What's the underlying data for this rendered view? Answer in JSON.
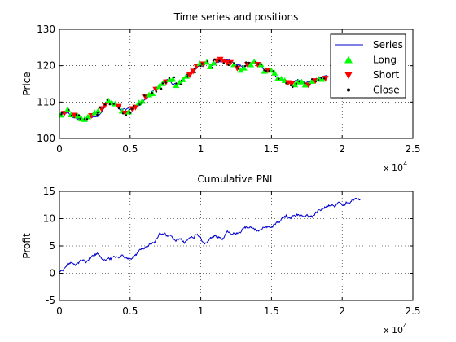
{
  "chart_data": [
    {
      "type": "scatter",
      "title": "Time series and positions",
      "xlabel": "",
      "ylabel": "Price",
      "xlim": [
        0,
        25000
      ],
      "ylim": [
        100,
        130
      ],
      "x_ticks": [
        0,
        5000,
        10000,
        15000,
        20000,
        25000
      ],
      "x_tick_labels": [
        "0",
        "0.5",
        "1",
        "1.5",
        "2",
        "2.5"
      ],
      "x_exponent_label": "x 10",
      "x_exponent_power": "4",
      "y_ticks": [
        100,
        110,
        120,
        130
      ],
      "y_tick_labels": [
        "100",
        "110",
        "120",
        "130"
      ],
      "grid": true,
      "legend_position": "top-right",
      "legend": [
        {
          "label": "Series",
          "color": "#0000cc",
          "marker": "line"
        },
        {
          "label": "Long",
          "color": "#00ff00",
          "marker": "triangle-up"
        },
        {
          "label": "Short",
          "color": "#ff0000",
          "marker": "triangle-down"
        },
        {
          "label": "Close",
          "color": "#000000",
          "marker": "dot"
        }
      ],
      "series": [
        {
          "name": "Series",
          "color": "#0000cc",
          "points": [
            [
              0,
              106.5
            ],
            [
              600,
              107.5
            ],
            [
              1000,
              106.0
            ],
            [
              1400,
              105.5
            ],
            [
              1800,
              105.0
            ],
            [
              2300,
              106.5
            ],
            [
              2700,
              107.0
            ],
            [
              3200,
              108.5
            ],
            [
              3600,
              110.5
            ],
            [
              3900,
              109.5
            ],
            [
              4300,
              108.0
            ],
            [
              4700,
              107.5
            ],
            [
              5000,
              107.5
            ],
            [
              5400,
              109.0
            ],
            [
              5900,
              110.5
            ],
            [
              6400,
              112.0
            ],
            [
              6900,
              114.0
            ],
            [
              7400,
              115.5
            ],
            [
              7900,
              116.0
            ],
            [
              8300,
              115.0
            ],
            [
              8700,
              115.5
            ],
            [
              9100,
              117.5
            ],
            [
              9500,
              119.0
            ],
            [
              9900,
              120.5
            ],
            [
              10300,
              121.0
            ],
            [
              10700,
              120.0
            ],
            [
              11100,
              121.0
            ],
            [
              11500,
              122.0
            ],
            [
              11800,
              121.5
            ],
            [
              12200,
              120.5
            ],
            [
              12600,
              119.0
            ],
            [
              13000,
              119.5
            ],
            [
              13400,
              120.0
            ],
            [
              13800,
              121.0
            ],
            [
              14200,
              120.0
            ],
            [
              14600,
              118.5
            ],
            [
              15000,
              118.5
            ],
            [
              15400,
              117.0
            ],
            [
              15800,
              116.0
            ],
            [
              16200,
              115.5
            ],
            [
              16600,
              115.0
            ],
            [
              17000,
              116.0
            ],
            [
              17400,
              115.0
            ],
            [
              17800,
              115.5
            ],
            [
              18200,
              116.5
            ],
            [
              18600,
              116.5
            ],
            [
              19000,
              117.0
            ]
          ]
        },
        {
          "name": "Long",
          "color": "#00ff00",
          "marker": "triangle-up",
          "follows": "Series",
          "every": 240
        },
        {
          "name": "Short",
          "color": "#ff0000",
          "marker": "triangle-down",
          "follows": "Series",
          "every": 240
        },
        {
          "name": "Close",
          "color": "#000000",
          "marker": "dot",
          "follows": "Series",
          "every": 240
        }
      ]
    },
    {
      "type": "line",
      "title": "Cumulative PNL",
      "xlabel": "",
      "ylabel": "Profit",
      "xlim": [
        0,
        25000
      ],
      "ylim": [
        -5,
        15
      ],
      "x_ticks": [
        0,
        5000,
        10000,
        15000,
        20000,
        25000
      ],
      "x_tick_labels": [
        "0",
        "0.5",
        "1",
        "1.5",
        "2",
        "2.5"
      ],
      "x_exponent_label": "x 10",
      "x_exponent_power": "4",
      "y_ticks": [
        -5,
        0,
        5,
        10,
        15
      ],
      "y_tick_labels": [
        "-5",
        "0",
        "5",
        "10",
        "15"
      ],
      "grid": true,
      "series": [
        {
          "name": "",
          "color": "#0000cc",
          "points": [
            [
              0,
              0.2
            ],
            [
              400,
              1.0
            ],
            [
              800,
              2.0
            ],
            [
              1100,
              1.3
            ],
            [
              1500,
              2.2
            ],
            [
              1900,
              2.5
            ],
            [
              2300,
              3.2
            ],
            [
              2700,
              3.7
            ],
            [
              3100,
              3.0
            ],
            [
              3500,
              2.5
            ],
            [
              3900,
              3.0
            ],
            [
              4300,
              3.3
            ],
            [
              4700,
              3.2
            ],
            [
              5100,
              3.0
            ],
            [
              5500,
              3.6
            ],
            [
              5900,
              4.6
            ],
            [
              6300,
              5.3
            ],
            [
              6700,
              5.6
            ],
            [
              7100,
              7.0
            ],
            [
              7400,
              7.5
            ],
            [
              7700,
              6.8
            ],
            [
              8100,
              6.3
            ],
            [
              8500,
              6.0
            ],
            [
              8900,
              5.6
            ],
            [
              9300,
              6.4
            ],
            [
              9700,
              7.2
            ],
            [
              10000,
              6.3
            ],
            [
              10300,
              5.4
            ],
            [
              10700,
              6.2
            ],
            [
              11100,
              6.8
            ],
            [
              11500,
              6.5
            ],
            [
              11900,
              7.3
            ],
            [
              12300,
              7.0
            ],
            [
              12700,
              7.6
            ],
            [
              13100,
              8.6
            ],
            [
              13500,
              8.5
            ],
            [
              13900,
              8.0
            ],
            [
              14300,
              7.8
            ],
            [
              14700,
              8.1
            ],
            [
              15100,
              8.6
            ],
            [
              15500,
              9.4
            ],
            [
              15900,
              10.3
            ],
            [
              16300,
              10.5
            ],
            [
              16700,
              10.6
            ],
            [
              17100,
              10.8
            ],
            [
              17500,
              10.6
            ],
            [
              17900,
              10.3
            ],
            [
              18300,
              11.5
            ],
            [
              18700,
              12.4
            ],
            [
              19100,
              12.6
            ],
            [
              19500,
              12.3
            ],
            [
              19900,
              12.8
            ],
            [
              20300,
              13.1
            ],
            [
              20700,
              13.3
            ],
            [
              21000,
              13.7
            ],
            [
              21300,
              13.5
            ]
          ]
        }
      ]
    }
  ]
}
